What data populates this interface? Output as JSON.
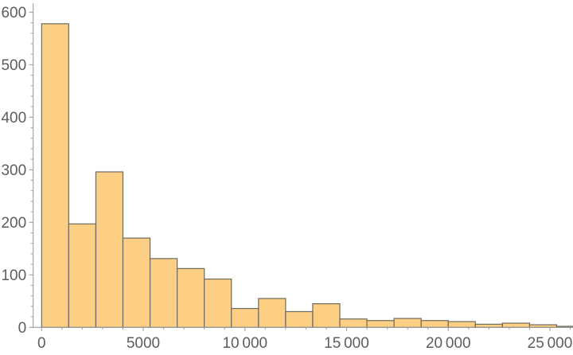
{
  "chart_data": {
    "type": "bar",
    "subtype": "histogram",
    "title": "",
    "xlabel": "",
    "ylabel": "",
    "grid": false,
    "legend": null,
    "bin_width": 1333.33,
    "bin_edges": [
      0,
      1333,
      2667,
      4000,
      5333,
      6667,
      8000,
      9333,
      10667,
      12000,
      13333,
      14667,
      16000,
      17333,
      18667,
      20000,
      21333,
      22667,
      24000,
      25333,
      26667
    ],
    "counts": [
      578,
      197,
      296,
      170,
      131,
      112,
      92,
      36,
      55,
      30,
      45,
      16,
      13,
      17,
      13,
      11,
      6,
      8,
      5,
      2
    ],
    "xlim": [
      -420,
      26150
    ],
    "ylim": [
      0,
      615
    ],
    "x_ticks_major": [
      0,
      5000,
      10000,
      15000,
      20000,
      25000
    ],
    "x_tick_labels": [
      "0",
      "5000",
      "10 000",
      "15 000",
      "20 000",
      "25 000"
    ],
    "x_minor_step": 1000,
    "x_minor_max": 26000,
    "y_ticks_major": [
      0,
      100,
      200,
      300,
      400,
      500,
      600
    ],
    "y_tick_labels": [
      "0",
      "100",
      "200",
      "300",
      "400",
      "500",
      "600"
    ],
    "y_minor_step": 20,
    "colors": {
      "background": "#ffffff",
      "bar_fill": "#FCCF85",
      "bar_edge": "#6E6A5B",
      "axis_line": "#9E9E9E",
      "tick_mark": "#9E9E9E",
      "tick_label": "#5D5D5D"
    }
  }
}
